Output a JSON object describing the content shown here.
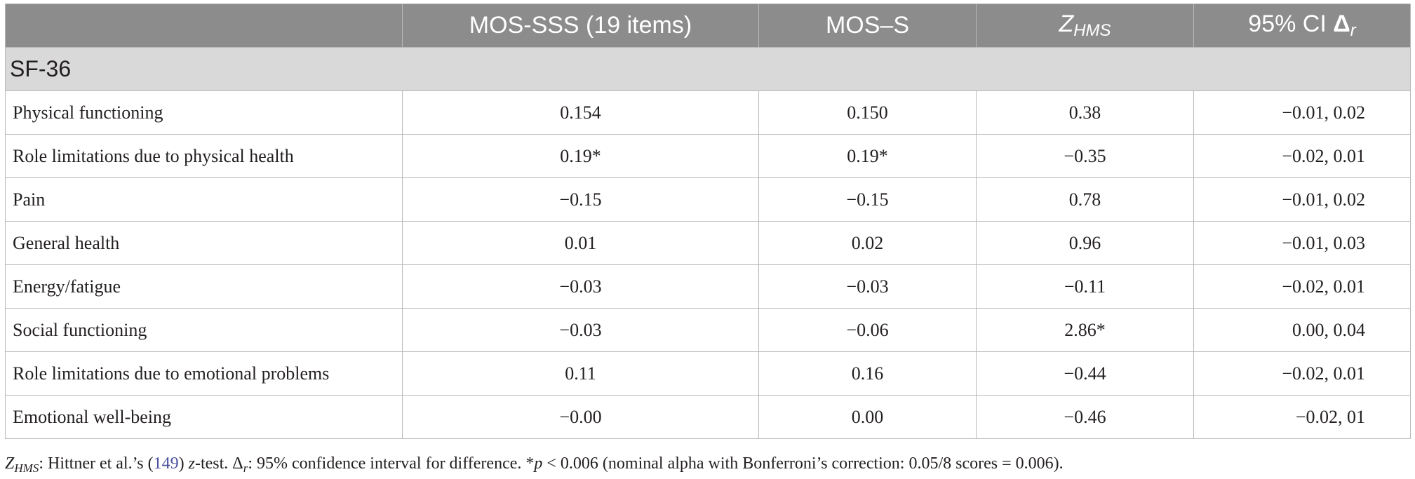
{
  "table": {
    "headers": {
      "col1": "MOS-SSS (19 items)",
      "col2": "MOS–S",
      "col3_main": "Z",
      "col3_sub": "HMS",
      "col4_main": "95% CI ",
      "col4_delta": "Δ",
      "col4_sub": "r"
    },
    "section": "SF-36",
    "rows": [
      {
        "label": "Physical functioning",
        "mos_sss": "0.154",
        "mos_s": "0.150",
        "z_hms": "0.38",
        "ci": "−0.01, 0.02"
      },
      {
        "label": "Role limitations due to physical health",
        "mos_sss": "0.19*",
        "mos_s": "0.19*",
        "z_hms": "−0.35",
        "ci": "−0.02, 0.01"
      },
      {
        "label": "Pain",
        "mos_sss": "−0.15",
        "mos_s": "−0.15",
        "z_hms": "0.78",
        "ci": "−0.01, 0.02"
      },
      {
        "label": "General health",
        "mos_sss": "0.01",
        "mos_s": "0.02",
        "z_hms": "0.96",
        "ci": "−0.01, 0.03"
      },
      {
        "label": "Energy/fatigue",
        "mos_sss": "−0.03",
        "mos_s": "−0.03",
        "z_hms": "−0.11",
        "ci": "−0.02, 0.01"
      },
      {
        "label": "Social functioning",
        "mos_sss": "−0.03",
        "mos_s": "−0.06",
        "z_hms": "2.86*",
        "ci": "0.00, 0.04"
      },
      {
        "label": "Role limitations due to emotional problems",
        "mos_sss": "0.11",
        "mos_s": "0.16",
        "z_hms": "−0.44",
        "ci": "−0.02, 0.01"
      },
      {
        "label": "Emotional well-being",
        "mos_sss": "−0.00",
        "mos_s": "0.00",
        "z_hms": "−0.46",
        "ci": "−0.02, 01"
      }
    ]
  },
  "footnote": {
    "z_main": "Z",
    "z_sub": "HMS",
    "part1": ": Hittner et al.’s (",
    "citation": "149",
    "part2": ") ",
    "z_word": "z",
    "part3": "-test. ",
    "delta": "Δ",
    "delta_sub": "r",
    "part4": ": 95% confidence interval for difference. *",
    "p_word": "p",
    "part5": " < 0.006 (nominal alpha with Bonferroni’s correction: 0.05/8 scores = 0.006)."
  }
}
